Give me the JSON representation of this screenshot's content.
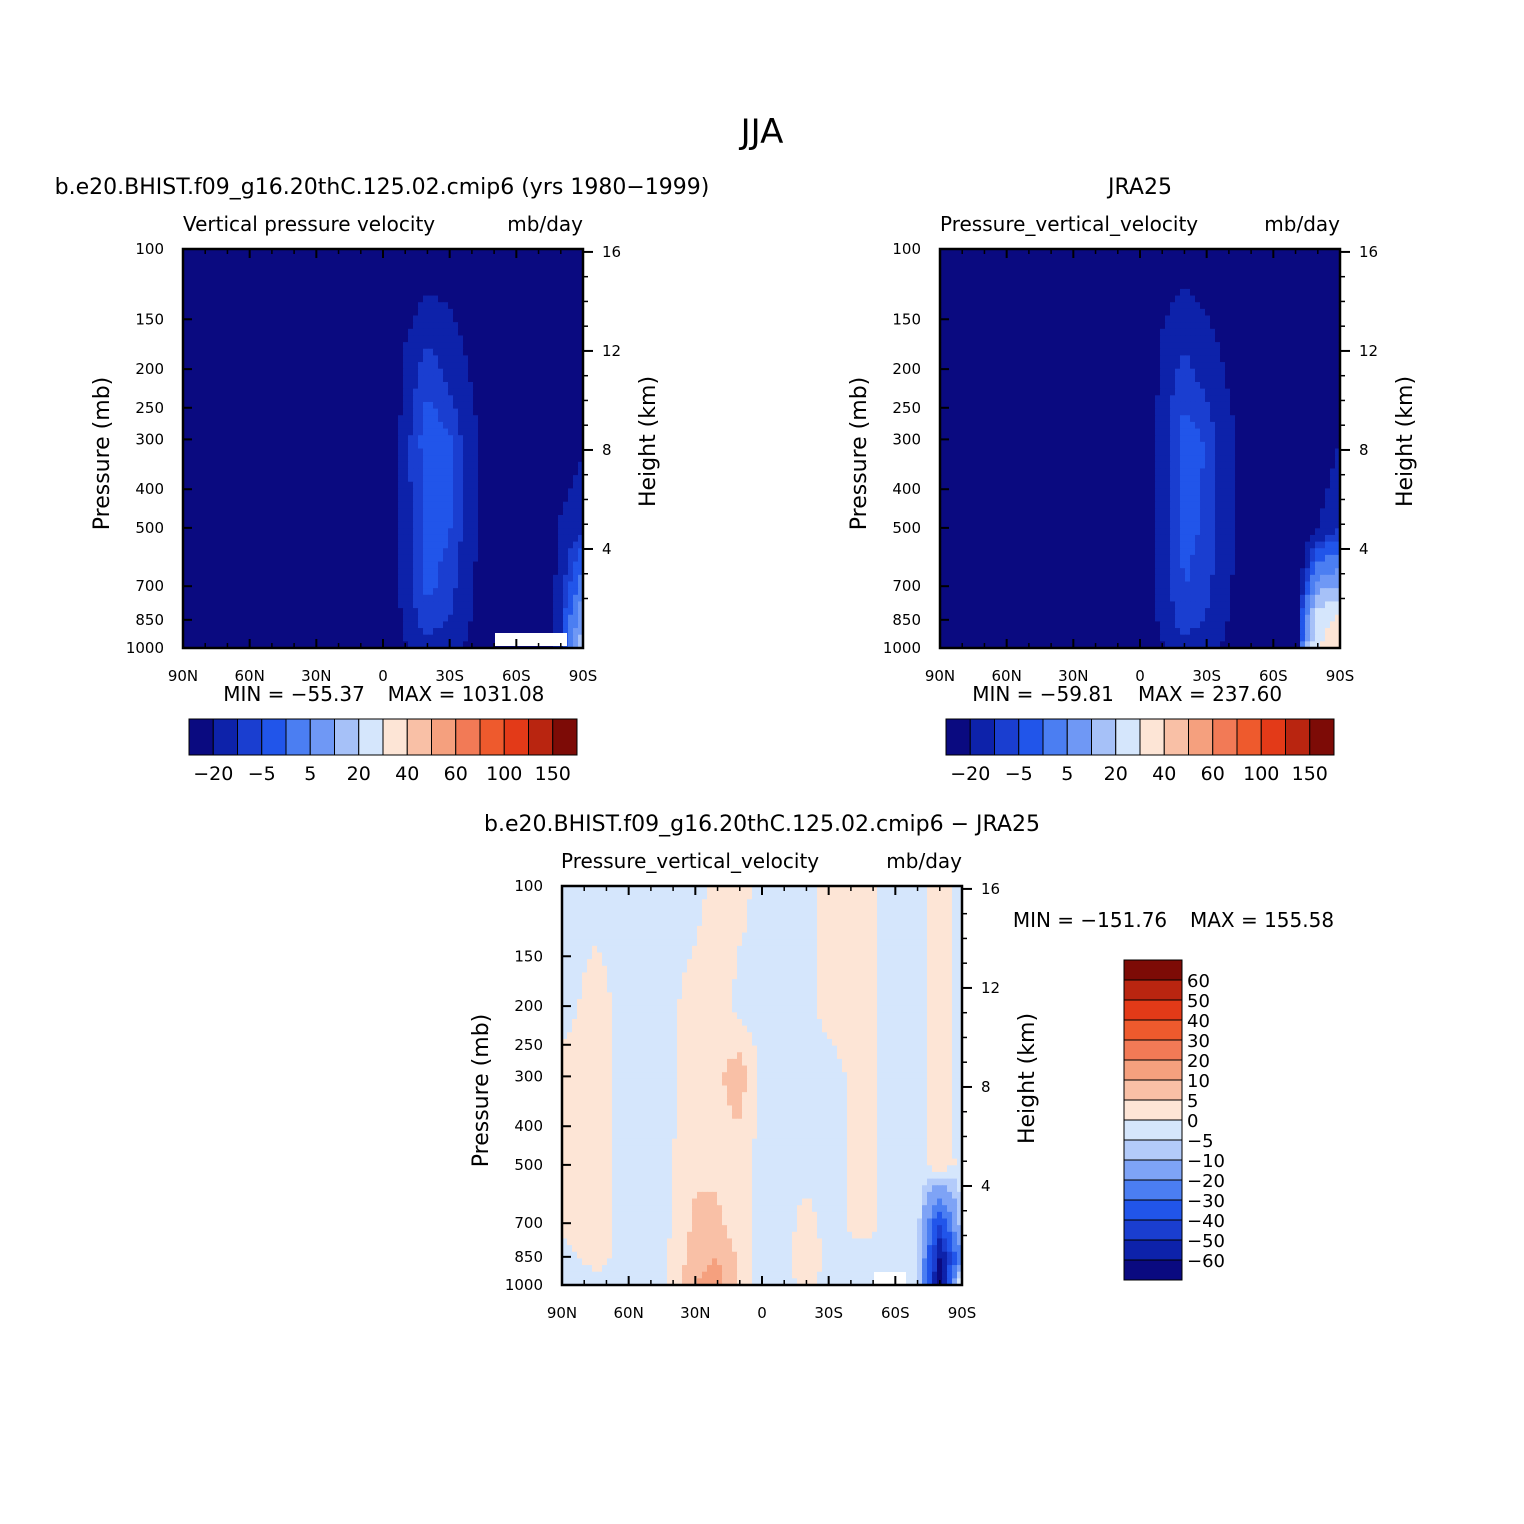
{
  "page": {
    "main_title": "JJA"
  },
  "colors": {
    "panel_levels": [
      "#0a0a80",
      "#0d22aa",
      "#1a3ed0",
      "#2155ea",
      "#4b7ef2",
      "#6f98f5",
      "#a6c1f8",
      "#d5e6fc",
      "#fde5d6",
      "#f9c0a6",
      "#f5a07e",
      "#f27a56",
      "#ee5a2d",
      "#e33a18",
      "#b92510",
      "#7d0b06"
    ],
    "diff_levels": [
      "#0a0a80",
      "#0d22aa",
      "#1a3ed0",
      "#2155ea",
      "#4b7ef2",
      "#7ea3f6",
      "#b3cbfa",
      "#d5e6fc",
      "#fde5d6",
      "#f9c0a6",
      "#f5a07e",
      "#f27a56",
      "#ee5a2d",
      "#e33a18",
      "#b92510",
      "#7d0b06"
    ]
  },
  "axes": {
    "pressure_label": "Pressure  (mb)",
    "height_label": "Height  (km)",
    "pressure_ticks": [
      "100",
      "150",
      "200",
      "250",
      "300",
      "400",
      "500",
      "700",
      "850",
      "1000"
    ],
    "height_ticks": [
      "16",
      "12",
      "8",
      "4"
    ],
    "lat_ticks": [
      "90N",
      "60N",
      "30N",
      "0",
      "30S",
      "60S",
      "90S"
    ]
  },
  "panels": [
    {
      "title": "b.e20.BHIST.f09_g16.20thC.125.02.cmip6 (yrs 1980-1999)",
      "subtitle_left": "Vertical pressure velocity",
      "subtitle_right": "mb/day",
      "min_text": "MIN  =  -55.37",
      "max_text": "MAX  =  1031.08",
      "colorbar_labels": [
        "-20",
        "-5",
        "5",
        "20",
        "40",
        "60",
        "100",
        "150"
      ]
    },
    {
      "title": "JRA25",
      "subtitle_left": "Pressure_vertical_velocity",
      "subtitle_right": "mb/day",
      "min_text": "MIN  =  -59.81",
      "max_text": "MAX  =  237.60",
      "colorbar_labels": [
        "-20",
        "-5",
        "5",
        "20",
        "40",
        "60",
        "100",
        "150"
      ]
    },
    {
      "title": "b.e20.BHIST.f09_g16.20thC.125.02.cmip6 - JRA25",
      "subtitle_left": "Pressure_vertical_velocity",
      "subtitle_right": "mb/day",
      "min_text": "MIN  =  -151.76",
      "max_text": "MAX  =  155.58",
      "colorbar_labels": [
        "60",
        "50",
        "40",
        "30",
        "20",
        "10",
        "5",
        "0",
        "-5",
        "-10",
        "-20",
        "-30",
        "-40",
        "-50",
        "-60"
      ]
    }
  ],
  "chart_data": [
    {
      "type": "heatmap",
      "title": "b.e20.BHIST.f09_g16.20thC.125.02.cmip6 (yrs 1980-1999)",
      "variable": "Vertical pressure velocity",
      "units": "mb/day",
      "xlabel": "",
      "ylabel": "Pressure  (mb)",
      "y2label": "Height  (km)",
      "x_ticks": [
        "90N",
        "60N",
        "30N",
        "0",
        "30S",
        "60S",
        "90S"
      ],
      "y_ticks": [
        100,
        150,
        200,
        250,
        300,
        400,
        500,
        700,
        850,
        1000
      ],
      "y_scale": "log",
      "contour_levels": [
        -20,
        -5,
        5,
        20,
        40,
        60,
        100,
        150
      ],
      "min": -55.37,
      "max": 1031.08,
      "latitudes": [
        90,
        75,
        60,
        45,
        30,
        20,
        10,
        0,
        -10,
        -20,
        -30,
        -45,
        -60,
        -70,
        -80,
        -90
      ],
      "pressure_levels": [
        100,
        200,
        300,
        500,
        700,
        850,
        1000
      ],
      "values": [
        [
          -30,
          -30,
          -30,
          -30,
          -30,
          -33,
          -40,
          -42,
          -38,
          -32,
          -30,
          -32,
          -35,
          -38,
          -36,
          -34
        ],
        [
          -30,
          -30,
          -30,
          -32,
          -32,
          -28,
          -42,
          -48,
          -15,
          2,
          -10,
          -28,
          -38,
          -42,
          -36,
          -32
        ],
        [
          -32,
          -30,
          -32,
          -32,
          -28,
          -25,
          -48,
          -52,
          -10,
          12,
          6,
          -25,
          -40,
          -44,
          -32,
          -24
        ],
        [
          -34,
          -30,
          -30,
          -34,
          -26,
          -22,
          -45,
          -50,
          -10,
          10,
          6,
          -25,
          -40,
          -44,
          -18,
          -6
        ],
        [
          -38,
          -32,
          -35,
          -38,
          -25,
          -20,
          -40,
          -45,
          -12,
          8,
          0,
          -28,
          -40,
          -42,
          -12,
          30
        ],
        [
          -40,
          -32,
          -38,
          -40,
          -22,
          -20,
          -42,
          -44,
          -14,
          2,
          -5,
          -28,
          -38,
          -38,
          -6,
          60
        ],
        [
          -40,
          -36,
          -40,
          -44,
          -30,
          -30,
          -44,
          -44,
          -22,
          -10,
          -15,
          -30,
          -38,
          -40,
          -8,
          80
        ]
      ]
    },
    {
      "type": "heatmap",
      "title": "JRA25",
      "variable": "Pressure_vertical_velocity",
      "units": "mb/day",
      "xlabel": "",
      "ylabel": "Pressure  (mb)",
      "y2label": "Height  (km)",
      "x_ticks": [
        "90N",
        "60N",
        "30N",
        "0",
        "30S",
        "60S",
        "90S"
      ],
      "y_ticks": [
        100,
        150,
        200,
        250,
        300,
        400,
        500,
        700,
        850,
        1000
      ],
      "y_scale": "log",
      "contour_levels": [
        -20,
        -5,
        5,
        20,
        40,
        60,
        100,
        150
      ],
      "min": -59.81,
      "max": 237.6,
      "latitudes": [
        90,
        75,
        60,
        45,
        30,
        20,
        10,
        0,
        -10,
        -20,
        -30,
        -45,
        -60,
        -70,
        -80,
        -90
      ],
      "pressure_levels": [
        100,
        200,
        300,
        500,
        700,
        850,
        1000
      ],
      "values": [
        [
          -30,
          -30,
          -32,
          -30,
          -30,
          -34,
          -42,
          -36,
          -32,
          -30,
          -30,
          -32,
          -34,
          -34,
          -32,
          -30
        ],
        [
          -30,
          -30,
          -32,
          -32,
          -30,
          -30,
          -45,
          -46,
          -14,
          0,
          -12,
          -28,
          -36,
          -38,
          -34,
          -32
        ],
        [
          -32,
          -30,
          -34,
          -32,
          -28,
          -26,
          -50,
          -50,
          -10,
          10,
          4,
          -24,
          -38,
          -42,
          -30,
          -20
        ],
        [
          -34,
          -32,
          -32,
          -34,
          -26,
          -24,
          -48,
          -48,
          -10,
          8,
          4,
          -24,
          -38,
          -44,
          -20,
          -8
        ],
        [
          -36,
          -32,
          -36,
          -36,
          -26,
          -22,
          -44,
          -44,
          -12,
          6,
          -2,
          -26,
          -38,
          -40,
          50,
          60
        ],
        [
          -38,
          -34,
          -38,
          -38,
          -24,
          -22,
          -44,
          -42,
          -14,
          2,
          -6,
          -28,
          -36,
          -38,
          120,
          160
        ],
        [
          -40,
          -36,
          -40,
          -42,
          -30,
          -30,
          -46,
          -44,
          -22,
          -10,
          -14,
          -30,
          -36,
          -36,
          150,
          200
        ]
      ]
    },
    {
      "type": "heatmap",
      "title": "b.e20.BHIST.f09_g16.20thC.125.02.cmip6 - JRA25",
      "variable": "Pressure_vertical_velocity",
      "units": "mb/day",
      "xlabel": "",
      "ylabel": "Pressure  (mb)",
      "y2label": "Height  (km)",
      "x_ticks": [
        "90N",
        "60N",
        "30N",
        "0",
        "30S",
        "60S",
        "90S"
      ],
      "y_ticks": [
        100,
        150,
        200,
        250,
        300,
        400,
        500,
        700,
        850,
        1000
      ],
      "y_scale": "log",
      "contour_levels": [
        -60,
        -50,
        -40,
        -30,
        -20,
        -10,
        -5,
        0,
        5,
        10,
        20,
        30,
        40,
        50,
        60
      ],
      "min": -151.76,
      "max": 155.58,
      "latitudes": [
        90,
        75,
        60,
        45,
        30,
        20,
        10,
        0,
        -10,
        -20,
        -30,
        -45,
        -60,
        -70,
        -80,
        -90
      ],
      "pressure_levels": [
        100,
        200,
        300,
        500,
        700,
        850,
        1000
      ],
      "values": [
        [
          -2,
          -2,
          -2,
          -2,
          -2,
          2,
          2,
          -2,
          -2,
          -2,
          2,
          2,
          -2,
          -2,
          2,
          -2
        ],
        [
          -2,
          2,
          -2,
          -2,
          2,
          4,
          -2,
          -2,
          -2,
          -2,
          2,
          2,
          -2,
          -2,
          2,
          -2
        ],
        [
          2,
          2,
          -2,
          -2,
          2,
          4,
          8,
          -2,
          -2,
          -2,
          -2,
          2,
          -2,
          -2,
          2,
          -2
        ],
        [
          2,
          2,
          -2,
          -2,
          4,
          4,
          2,
          -2,
          -2,
          -2,
          -2,
          2,
          -2,
          -2,
          4,
          -2
        ],
        [
          2,
          2,
          -2,
          -2,
          6,
          6,
          2,
          -2,
          -2,
          2,
          -2,
          2,
          -2,
          -2,
          -40,
          -6
        ],
        [
          -2,
          2,
          -2,
          -2,
          8,
          10,
          4,
          -4,
          -2,
          4,
          -2,
          -2,
          -2,
          -2,
          -60,
          -20
        ],
        [
          -4,
          -2,
          -2,
          -2,
          10,
          12,
          4,
          -4,
          -2,
          2,
          -2,
          -2,
          -2,
          -2,
          -70,
          10
        ]
      ]
    }
  ]
}
